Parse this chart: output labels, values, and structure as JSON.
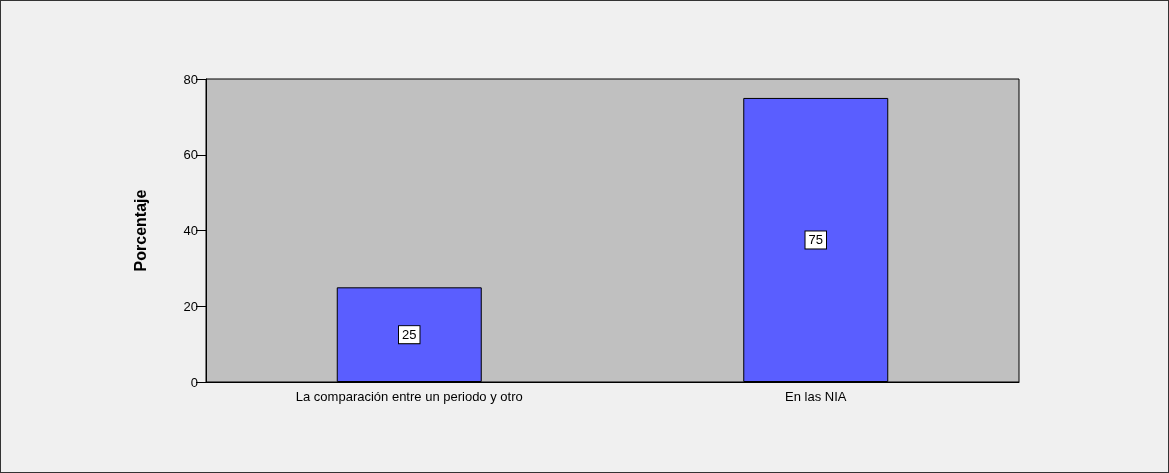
{
  "chart_data": {
    "type": "bar",
    "ylabel": "Porcentaje",
    "categories": [
      "La comparación entre un periodo y otro",
      "En las NIA"
    ],
    "values": [
      25,
      75
    ],
    "color": "#5a5eff",
    "ylim": [
      0,
      80
    ],
    "yticks": [
      0,
      20,
      40,
      60,
      80
    ],
    "grid": false,
    "data_labels": true
  }
}
